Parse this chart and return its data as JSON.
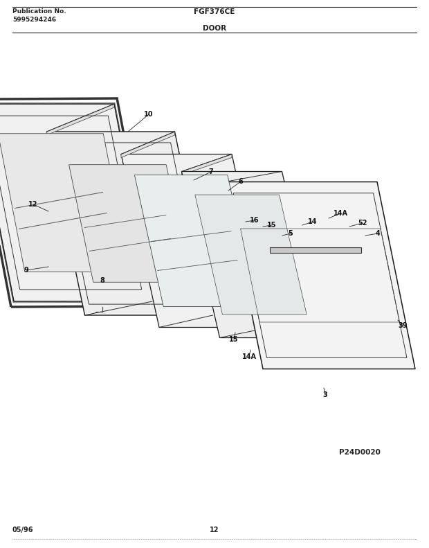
{
  "title_left_line1": "Publication No.",
  "title_left_line2": "5995294246",
  "title_center": "FGF376CE",
  "subtitle_center": "DOOR",
  "bottom_left": "05/96",
  "bottom_center": "12",
  "diagram_id": "P24D0020",
  "bg_color": "#ffffff",
  "line_color": "#222222",
  "fg_color": "#111111"
}
